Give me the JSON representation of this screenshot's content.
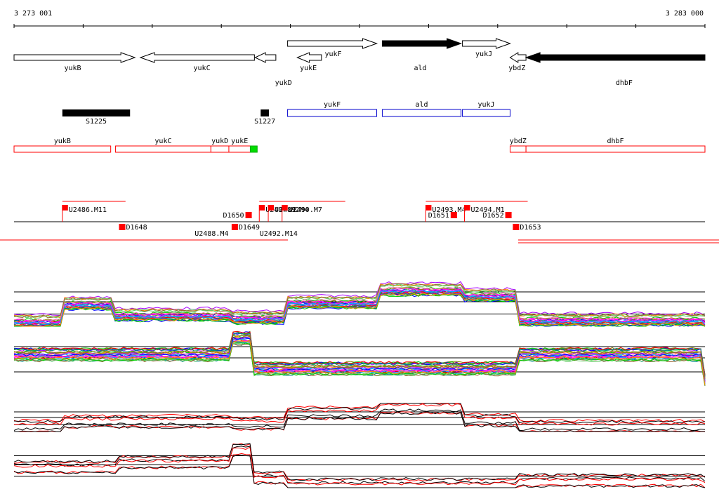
{
  "coordinates": {
    "start": "3 273 001",
    "end": "3 283 000"
  },
  "colors": {
    "ink": "#000000",
    "red": "#ff0000",
    "blue": "#0000cc",
    "green": "#00dd00",
    "grid": "#000000"
  },
  "genes": [
    {
      "name": "yukB",
      "start": 3273001,
      "end": 3274750,
      "strand": "+",
      "fill": "open",
      "label_row": 1,
      "label_pos": 3273850
    },
    {
      "name": "yukC",
      "start": 3274830,
      "end": 3276480,
      "strand": "-",
      "fill": "open",
      "label_row": 1,
      "label_pos": 3275720
    },
    {
      "name": "yukD",
      "start": 3276490,
      "end": 3276790,
      "strand": "-",
      "fill": "open",
      "label_row": 2,
      "label_pos": 3276900
    },
    {
      "name": "yukE",
      "start": 3277100,
      "end": 3277450,
      "strand": "-",
      "fill": "open",
      "label_row": 1,
      "label_pos": 3277260
    },
    {
      "name": "yukF",
      "start": 3276960,
      "end": 3278250,
      "strand": "+",
      "fill": "open",
      "label_row": 0,
      "label_pos": 3277620,
      "row": "top"
    },
    {
      "name": "ald",
      "start": 3278330,
      "end": 3279470,
      "strand": "+",
      "fill": "solid",
      "label_row": 1,
      "label_pos": 3278880,
      "row": "top"
    },
    {
      "name": "yukJ",
      "start": 3279490,
      "end": 3280180,
      "strand": "+",
      "fill": "open",
      "label_row": 0,
      "label_pos": 3279800,
      "row": "top"
    },
    {
      "name": "ybdZ",
      "start": 3280180,
      "end": 3280410,
      "strand": "-",
      "fill": "open",
      "label_row": 1,
      "label_pos": 3280280
    },
    {
      "name": "dhbF",
      "start": 3280410,
      "end": 3283000,
      "strand": "-",
      "fill": "solid",
      "label_row": 2,
      "label_pos": 3281830
    }
  ],
  "segments_row": [
    {
      "name": "S1225",
      "start": 3273700,
      "end": 3274680,
      "kind": "black"
    },
    {
      "name": "S1227",
      "start": 3276570,
      "end": 3276690,
      "kind": "black"
    },
    {
      "name": "yukF",
      "start": 3276960,
      "end": 3278250,
      "kind": "blue"
    },
    {
      "name": "ald",
      "start": 3278330,
      "end": 3279470,
      "kind": "blue"
    },
    {
      "name": "yukJ",
      "start": 3279490,
      "end": 3280180,
      "kind": "blue"
    }
  ],
  "red_boxes_row": [
    {
      "name": "yukB",
      "start": 3273001,
      "end": 3274400
    },
    {
      "name": "yukC",
      "start": 3274470,
      "end": 3275850
    },
    {
      "name": "yukD",
      "start": 3275850,
      "end": 3276110
    },
    {
      "name": "yukE",
      "start": 3276110,
      "end": 3276420
    },
    {
      "name": "ybdZ",
      "start": 3280180,
      "end": 3280410
    },
    {
      "name": "dhbF",
      "start": 3280410,
      "end": 3283000
    }
  ],
  "green_marker": {
    "start": 3276420,
    "end": 3276520
  },
  "features": {
    "upstream": [
      {
        "name": "U2486.M11",
        "pos": 3273700
      },
      {
        "name": "U2487.M2",
        "pos": 3276550
      },
      {
        "name": "U2489.M4",
        "pos": 3276680
      },
      {
        "name": "U2490.M7",
        "pos": 3276880
      },
      {
        "name": "U2493.M4",
        "pos": 3278960
      },
      {
        "name": "U2494.M1",
        "pos": 3279520
      }
    ],
    "downstream": [
      {
        "name": "D1648",
        "pos": 3274520,
        "below": true
      },
      {
        "name": "D1650",
        "pos": 3276350,
        "below": false
      },
      {
        "name": "D1649",
        "pos": 3276150,
        "below": true
      },
      {
        "name": "D1651",
        "pos": 3279320,
        "below": false
      },
      {
        "name": "D1652",
        "pos": 3280110,
        "below": false
      },
      {
        "name": "D1653",
        "pos": 3280220,
        "below": true
      }
    ],
    "lower_labels": [
      {
        "name": "U2488.M4",
        "pos": 3275860
      },
      {
        "name": "U2492.M14",
        "pos": 3276830
      }
    ]
  }
}
